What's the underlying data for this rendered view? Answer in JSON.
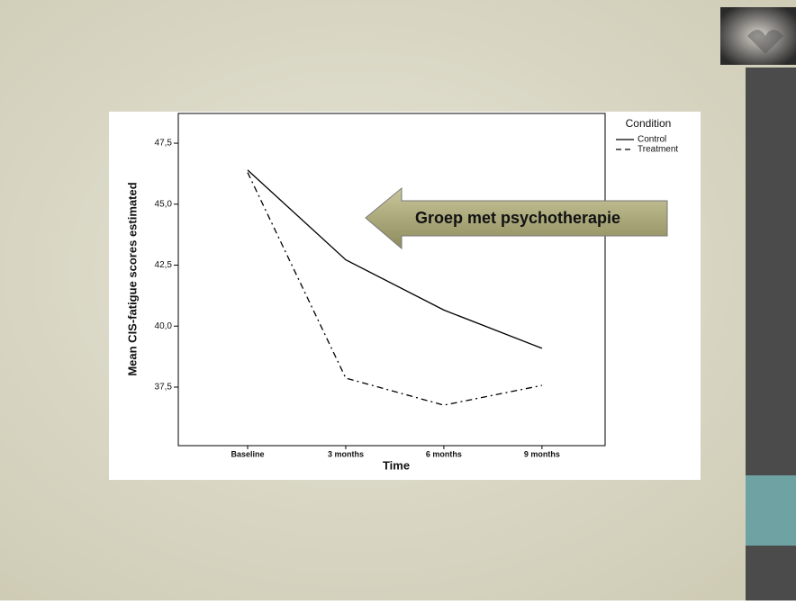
{
  "chart_data": {
    "type": "line",
    "x_label": "Time",
    "y_label": "Mean CIS-fatigue scores estimated",
    "legend_title": "Condition",
    "legend": "top-right",
    "annotation": "Groep met psychotherapie",
    "categories": [
      "Baseline",
      "3 months",
      "6 months",
      "9 months"
    ],
    "series": [
      {
        "name": "Control",
        "color": "#000000",
        "dash": "solid",
        "values": [
          46.4,
          42.72,
          40.66,
          39.09
        ]
      },
      {
        "name": "Treatment",
        "color": "#000000",
        "dash": "dashed",
        "values": [
          46.3,
          37.87,
          36.76,
          37.57
        ]
      }
    ],
    "ylim": [
      35.1,
      48.72
    ],
    "yticks": [
      {
        "value": 37.5,
        "label": "37,5"
      },
      {
        "value": 40,
        "label": "40,0"
      },
      {
        "value": 42.5,
        "label": "42,5"
      },
      {
        "value": 45,
        "label": "45,0"
      },
      {
        "value": 47.5,
        "label": "47,5"
      }
    ],
    "grid": false
  }
}
